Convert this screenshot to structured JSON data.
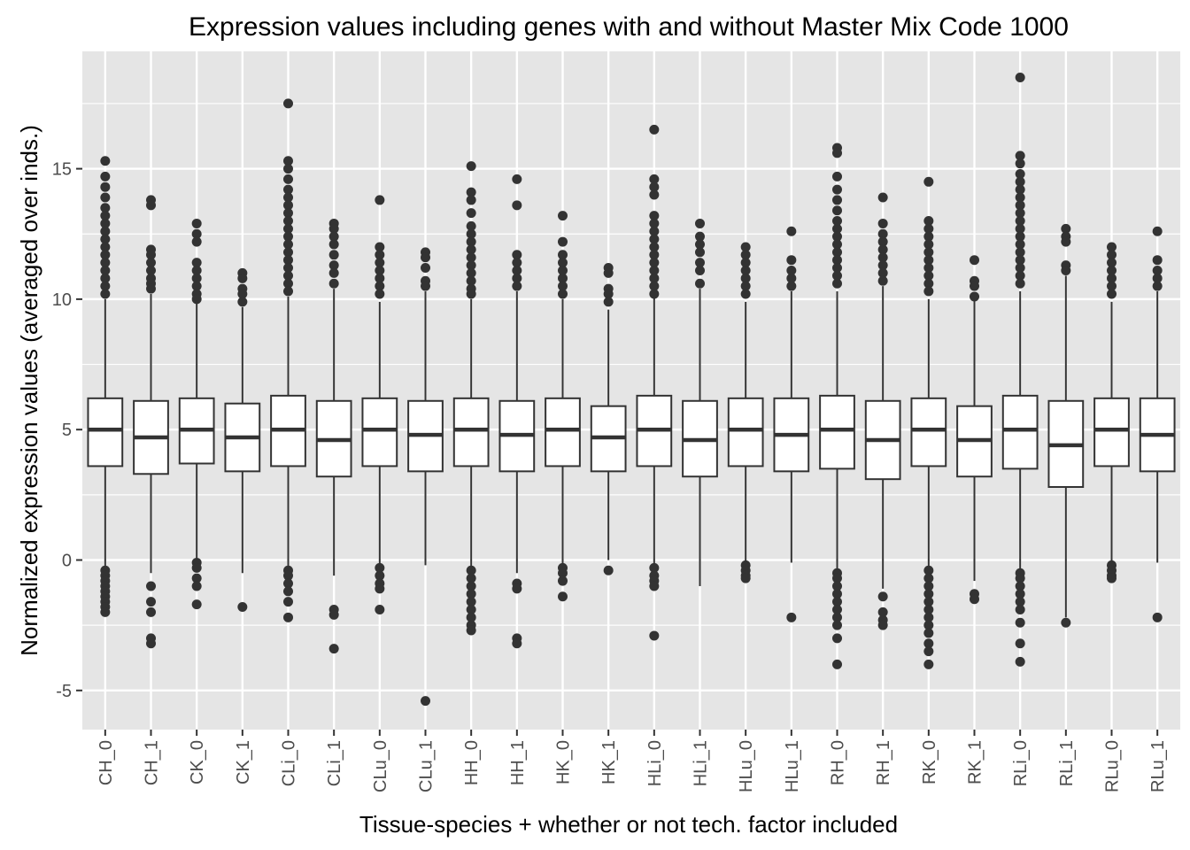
{
  "chart_data": {
    "type": "boxplot",
    "title": "Expression values including genes with and without Master Mix Code 1000",
    "xlabel": "Tissue-species + whether or not tech. factor included",
    "ylabel": "Normalized expression values (averaged over inds.)",
    "ylim": [
      -6.5,
      19.5
    ],
    "yticks": [
      -5,
      0,
      5,
      10,
      15
    ],
    "grid": true,
    "legend": "none",
    "colors": {
      "panel": "#e5e5e5",
      "grid": "#ffffff",
      "box_fill": "#ffffff",
      "ink": "#333333"
    },
    "categories": [
      "CH_0",
      "CH_1",
      "CK_0",
      "CK_1",
      "CLi_0",
      "CLi_1",
      "CLu_0",
      "CLu_1",
      "HH_0",
      "HH_1",
      "HK_0",
      "HK_1",
      "HLi_0",
      "HLi_1",
      "HLu_0",
      "HLu_1",
      "RH_0",
      "RH_1",
      "RK_0",
      "RK_1",
      "RLi_0",
      "RLi_1",
      "RLu_0",
      "RLu_1"
    ],
    "boxes": [
      {
        "category": "CH_0",
        "lower": -0.3,
        "q1": 3.6,
        "median": 5.0,
        "q3": 6.2,
        "upper": 10.0,
        "outliers": [
          15.3,
          14.7,
          14.3,
          13.9,
          13.5,
          13.2,
          12.9,
          12.6,
          12.3,
          12.0,
          11.7,
          11.4,
          11.1,
          10.8,
          10.5,
          10.2,
          -0.4,
          -0.6,
          -0.8,
          -1.0,
          -1.2,
          -1.4,
          -1.6,
          -1.8,
          -2.0
        ]
      },
      {
        "category": "CH_1",
        "lower": -0.5,
        "q1": 3.3,
        "median": 4.7,
        "q3": 6.1,
        "upper": 10.2,
        "outliers": [
          13.8,
          13.6,
          11.9,
          11.7,
          11.4,
          11.1,
          10.8,
          10.6,
          10.4,
          -1.0,
          -1.6,
          -2.0,
          -3.0,
          -3.2
        ]
      },
      {
        "category": "CK_0",
        "lower": 0.0,
        "q1": 3.7,
        "median": 5.0,
        "q3": 6.2,
        "upper": 9.9,
        "outliers": [
          12.9,
          12.5,
          12.2,
          11.4,
          11.1,
          10.8,
          10.5,
          10.2,
          10.0,
          -0.1,
          -0.3,
          -0.7,
          -1.0,
          -1.7
        ]
      },
      {
        "category": "CK_1",
        "lower": -0.5,
        "q1": 3.4,
        "median": 4.7,
        "q3": 6.0,
        "upper": 9.7,
        "outliers": [
          11.0,
          10.8,
          10.4,
          10.2,
          9.9,
          -1.8
        ]
      },
      {
        "category": "CLi_0",
        "lower": -0.3,
        "q1": 3.6,
        "median": 5.0,
        "q3": 6.3,
        "upper": 10.1,
        "outliers": [
          17.5,
          15.3,
          15.0,
          14.6,
          14.2,
          13.9,
          13.6,
          13.3,
          13.0,
          12.7,
          12.4,
          12.1,
          11.8,
          11.5,
          11.2,
          10.9,
          10.6,
          10.3,
          -0.4,
          -0.6,
          -0.9,
          -1.2,
          -1.6,
          -2.2
        ]
      },
      {
        "category": "CLi_1",
        "lower": -0.6,
        "q1": 3.2,
        "median": 4.6,
        "q3": 6.1,
        "upper": 10.4,
        "outliers": [
          12.9,
          12.7,
          12.4,
          12.1,
          11.7,
          11.3,
          11.0,
          10.6,
          -1.9,
          -2.1,
          -3.4
        ]
      },
      {
        "category": "CLu_0",
        "lower": -0.2,
        "q1": 3.6,
        "median": 5.0,
        "q3": 6.2,
        "upper": 9.9,
        "outliers": [
          13.8,
          12.0,
          11.7,
          11.4,
          11.1,
          10.8,
          10.5,
          10.2,
          -0.3,
          -0.6,
          -0.9,
          -1.1,
          -1.9
        ]
      },
      {
        "category": "CLu_1",
        "lower": -0.2,
        "q1": 3.4,
        "median": 4.8,
        "q3": 6.1,
        "upper": 10.3,
        "outliers": [
          11.8,
          11.6,
          11.2,
          10.7,
          10.5,
          -5.4
        ]
      },
      {
        "category": "HH_0",
        "lower": -0.3,
        "q1": 3.6,
        "median": 5.0,
        "q3": 6.2,
        "upper": 10.0,
        "outliers": [
          15.1,
          14.1,
          13.8,
          13.3,
          12.8,
          12.5,
          12.2,
          11.9,
          11.6,
          11.3,
          11.0,
          10.7,
          10.4,
          10.2,
          -0.4,
          -0.7,
          -1.0,
          -1.3,
          -1.6,
          -1.9,
          -2.2,
          -2.5,
          -2.7
        ]
      },
      {
        "category": "HH_1",
        "lower": -0.5,
        "q1": 3.4,
        "median": 4.8,
        "q3": 6.1,
        "upper": 10.3,
        "outliers": [
          14.6,
          13.6,
          11.7,
          11.4,
          11.1,
          10.8,
          10.5,
          -0.9,
          -1.1,
          -3.0,
          -3.2
        ]
      },
      {
        "category": "HK_0",
        "lower": -0.2,
        "q1": 3.6,
        "median": 5.0,
        "q3": 6.2,
        "upper": 10.0,
        "outliers": [
          13.2,
          12.2,
          11.7,
          11.4,
          11.1,
          10.8,
          10.5,
          10.2,
          -0.3,
          -0.5,
          -0.8,
          -1.4
        ]
      },
      {
        "category": "HK_1",
        "lower": 0.0,
        "q1": 3.4,
        "median": 4.7,
        "q3": 5.9,
        "upper": 9.6,
        "outliers": [
          11.2,
          11.0,
          10.4,
          10.2,
          9.9,
          -0.4
        ]
      },
      {
        "category": "HLi_0",
        "lower": -0.3,
        "q1": 3.6,
        "median": 5.0,
        "q3": 6.3,
        "upper": 10.1,
        "outliers": [
          16.5,
          14.6,
          14.3,
          14.0,
          13.2,
          12.9,
          12.6,
          12.3,
          12.0,
          11.7,
          11.4,
          11.1,
          10.8,
          10.5,
          10.2,
          -0.3,
          -0.6,
          -0.8,
          -1.0,
          -2.9
        ]
      },
      {
        "category": "HLi_1",
        "lower": -1.0,
        "q1": 3.2,
        "median": 4.6,
        "q3": 6.1,
        "upper": 10.4,
        "outliers": [
          12.9,
          12.4,
          12.1,
          11.8,
          11.4,
          11.1,
          10.6
        ]
      },
      {
        "category": "HLu_0",
        "lower": -0.2,
        "q1": 3.6,
        "median": 5.0,
        "q3": 6.2,
        "upper": 9.9,
        "outliers": [
          12.0,
          11.7,
          11.4,
          11.1,
          10.8,
          10.5,
          10.2,
          -0.2,
          -0.4,
          -0.6,
          -0.7
        ]
      },
      {
        "category": "HLu_1",
        "lower": -0.1,
        "q1": 3.4,
        "median": 4.8,
        "q3": 6.2,
        "upper": 10.3,
        "outliers": [
          12.6,
          11.5,
          11.1,
          10.8,
          10.5,
          -2.2
        ]
      },
      {
        "category": "RH_0",
        "lower": -0.4,
        "q1": 3.5,
        "median": 5.0,
        "q3": 6.3,
        "upper": 10.3,
        "outliers": [
          15.8,
          15.6,
          14.7,
          14.2,
          13.8,
          13.4,
          13.0,
          12.7,
          12.4,
          12.1,
          11.8,
          11.5,
          11.2,
          10.9,
          10.6,
          -0.5,
          -0.7,
          -1.0,
          -1.3,
          -1.6,
          -1.9,
          -2.2,
          -2.5,
          -3.0,
          -4.0
        ]
      },
      {
        "category": "RH_1",
        "lower": -1.1,
        "q1": 3.1,
        "median": 4.6,
        "q3": 6.1,
        "upper": 10.5,
        "outliers": [
          13.9,
          12.9,
          12.5,
          12.2,
          11.9,
          11.6,
          11.3,
          11.0,
          10.7,
          -1.4,
          -2.0,
          -2.3,
          -2.5
        ]
      },
      {
        "category": "RK_0",
        "lower": -0.3,
        "q1": 3.6,
        "median": 5.0,
        "q3": 6.2,
        "upper": 10.0,
        "outliers": [
          14.5,
          13.0,
          12.7,
          12.4,
          12.1,
          11.8,
          11.5,
          11.2,
          10.9,
          10.6,
          10.3,
          -0.4,
          -0.7,
          -1.0,
          -1.3,
          -1.6,
          -1.9,
          -2.2,
          -2.5,
          -2.8,
          -3.2,
          -3.5,
          -4.0
        ]
      },
      {
        "category": "RK_1",
        "lower": -0.8,
        "q1": 3.2,
        "median": 4.6,
        "q3": 5.9,
        "upper": 10.0,
        "outliers": [
          11.5,
          10.7,
          10.5,
          10.1,
          -1.3,
          -1.5
        ]
      },
      {
        "category": "RLi_0",
        "lower": -0.4,
        "q1": 3.5,
        "median": 5.0,
        "q3": 6.3,
        "upper": 10.3,
        "outliers": [
          18.5,
          15.5,
          15.2,
          14.8,
          14.5,
          14.2,
          13.9,
          13.6,
          13.3,
          13.0,
          12.7,
          12.4,
          12.1,
          11.8,
          11.5,
          11.2,
          10.9,
          10.6,
          -0.5,
          -0.7,
          -1.0,
          -1.3,
          -1.6,
          -1.9,
          -2.4,
          -3.2,
          -3.9
        ]
      },
      {
        "category": "RLi_1",
        "lower": -2.2,
        "q1": 2.8,
        "median": 4.4,
        "q3": 6.1,
        "upper": 10.9,
        "outliers": [
          12.7,
          12.4,
          12.2,
          11.3,
          11.1,
          -2.4
        ]
      },
      {
        "category": "RLu_0",
        "lower": -0.1,
        "q1": 3.6,
        "median": 5.0,
        "q3": 6.2,
        "upper": 9.9,
        "outliers": [
          12.0,
          11.7,
          11.4,
          11.1,
          10.8,
          10.5,
          10.2,
          -0.2,
          -0.4,
          -0.6,
          -0.7
        ]
      },
      {
        "category": "RLu_1",
        "lower": -0.1,
        "q1": 3.4,
        "median": 4.8,
        "q3": 6.2,
        "upper": 10.3,
        "outliers": [
          12.6,
          11.5,
          11.1,
          10.8,
          10.5,
          -2.2
        ]
      }
    ]
  }
}
